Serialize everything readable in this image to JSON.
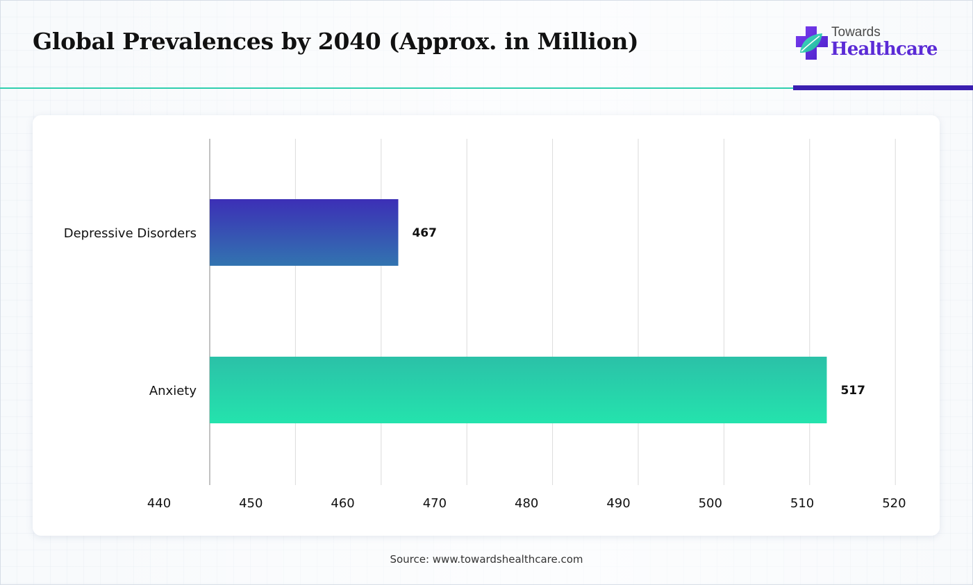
{
  "header": {
    "title": "Global Prevalences by 2040 (Approx. in Million)",
    "logo_top": "Towards",
    "logo_bottom": "Healthcare"
  },
  "footer": {
    "source": "Source: www.towardshealthcare.com"
  },
  "colors": {
    "teal_rule": "#2fcfae",
    "purple_rule": "#3a1fb0",
    "brand_purple": "#5b2bd6",
    "bar_depressive_top": "#3c2fb6",
    "bar_depressive_bottom": "#3274b0",
    "bar_anxiety_top": "#2bc1a8",
    "bar_anxiety_bottom": "#24e3ad"
  },
  "chart_data": {
    "type": "bar",
    "orientation": "horizontal",
    "categories": [
      "Depressive Disorders",
      "Anxiety"
    ],
    "values": [
      467,
      517
    ],
    "data_labels": [
      "467",
      "517"
    ],
    "x_ticks": [
      "440",
      "450",
      "460",
      "470",
      "480",
      "490",
      "500",
      "510",
      "520"
    ],
    "xlim": [
      440,
      520
    ],
    "title": "",
    "xlabel": "",
    "ylabel": "",
    "grid": true,
    "legend": "none"
  }
}
